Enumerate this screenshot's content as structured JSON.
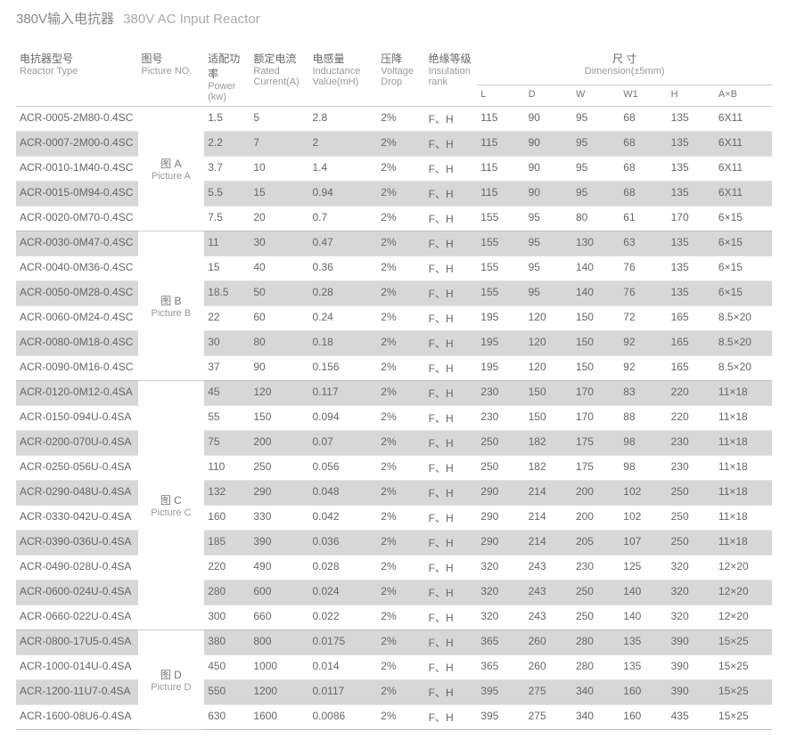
{
  "title_cn": "380V输入电抗器",
  "title_en": "380V AC  Input Reactor",
  "headers": {
    "type_cn": "电抗器型号",
    "type_en": "Reactor Type",
    "pic_cn": "图号",
    "pic_en": "Picture NO.",
    "power_cn": "适配功率",
    "power_en": "Power (kw)",
    "current_cn": "额定电流",
    "current_en": "Rated Current(A)",
    "ind_cn": "电感量",
    "ind_en": "Inductance Value(mH)",
    "drop_cn": "压降",
    "drop_en": "Voltage Drop",
    "ins_cn": "绝缘等级",
    "ins_en": "Insulation rank",
    "dim_cn": "尺 寸",
    "dim_en": "Dimension(±5mm)",
    "L": "L",
    "D": "D",
    "W": "W",
    "W1": "W1",
    "H": "H",
    "AxB": "A×B"
  },
  "groups": [
    {
      "pic_cn": "图  A",
      "pic_en": "Picture A",
      "rows": [
        {
          "type": "ACR-0005-2M80-0.4SC",
          "p": "1.5",
          "c": "5",
          "i": "2.8",
          "d": "2%",
          "ins": "F、H",
          "L": "115",
          "D": "90",
          "W": "95",
          "W1": "68",
          "H": "135",
          "AB": "6X11"
        },
        {
          "type": "ACR-0007-2M00-0.4SC",
          "p": "2.2",
          "c": "7",
          "i": "2",
          "d": "2%",
          "ins": "F、H",
          "L": "115",
          "D": "90",
          "W": "95",
          "W1": "68",
          "H": "135",
          "AB": "6X11"
        },
        {
          "type": "ACR-0010-1M40-0.4SC",
          "p": "3.7",
          "c": "10",
          "i": "1.4",
          "d": "2%",
          "ins": "F、H",
          "L": "115",
          "D": "90",
          "W": "95",
          "W1": "68",
          "H": "135",
          "AB": "6X11"
        },
        {
          "type": "ACR-0015-0M94-0.4SC",
          "p": "5.5",
          "c": "15",
          "i": "0.94",
          "d": "2%",
          "ins": "F、H",
          "L": "115",
          "D": "90",
          "W": "95",
          "W1": "68",
          "H": "135",
          "AB": "6X11"
        },
        {
          "type": "ACR-0020-0M70-0.4SC",
          "p": "7.5",
          "c": "20",
          "i": "0.7",
          "d": "2%",
          "ins": "F、H",
          "L": "155",
          "D": "95",
          "W": "80",
          "W1": "61",
          "H": "170",
          "AB": "6×15"
        }
      ]
    },
    {
      "pic_cn": "图  B",
      "pic_en": "Picture B",
      "rows": [
        {
          "type": "ACR-0030-0M47-0.4SC",
          "p": "11",
          "c": "30",
          "i": "0.47",
          "d": "2%",
          "ins": "F、H",
          "L": "155",
          "D": "95",
          "W": "130",
          "W1": "63",
          "H": "135",
          "AB": "6×15"
        },
        {
          "type": "ACR-0040-0M36-0.4SC",
          "p": "15",
          "c": "40",
          "i": "0.36",
          "d": "2%",
          "ins": "F、H",
          "L": "155",
          "D": "95",
          "W": "140",
          "W1": "76",
          "H": "135",
          "AB": "6×15"
        },
        {
          "type": "ACR-0050-0M28-0.4SC",
          "p": "18.5",
          "c": "50",
          "i": "0.28",
          "d": "2%",
          "ins": "F、H",
          "L": "155",
          "D": "95",
          "W": "140",
          "W1": "76",
          "H": "135",
          "AB": "6×15"
        },
        {
          "type": "ACR-0060-0M24-0.4SC",
          "p": "22",
          "c": "60",
          "i": "0.24",
          "d": "2%",
          "ins": "F、H",
          "L": "195",
          "D": "120",
          "W": "150",
          "W1": "72",
          "H": "165",
          "AB": "8.5×20"
        },
        {
          "type": "ACR-0080-0M18-0.4SC",
          "p": "30",
          "c": "80",
          "i": "0.18",
          "d": "2%",
          "ins": "F、H",
          "L": "195",
          "D": "120",
          "W": "150",
          "W1": "92",
          "H": "165",
          "AB": "8.5×20"
        },
        {
          "type": "ACR-0090-0M16-0.4SC",
          "p": "37",
          "c": "90",
          "i": "0.156",
          "d": "2%",
          "ins": "F、H",
          "L": "195",
          "D": "120",
          "W": "150",
          "W1": "92",
          "H": "165",
          "AB": "8.5×20"
        }
      ]
    },
    {
      "pic_cn": "图  C",
      "pic_en": "Picture C",
      "rows": [
        {
          "type": "ACR-0120-0M12-0.4SA",
          "p": "45",
          "c": "120",
          "i": "0.117",
          "d": "2%",
          "ins": "F、H",
          "L": "230",
          "D": "150",
          "W": "170",
          "W1": "83",
          "H": "220",
          "AB": "11×18"
        },
        {
          "type": "ACR-0150-094U-0.4SA",
          "p": "55",
          "c": "150",
          "i": "0.094",
          "d": "2%",
          "ins": "F、H",
          "L": "230",
          "D": "150",
          "W": "170",
          "W1": "88",
          "H": "220",
          "AB": "11×18"
        },
        {
          "type": "ACR-0200-070U-0.4SA",
          "p": "75",
          "c": "200",
          "i": "0.07",
          "d": "2%",
          "ins": "F、H",
          "L": "250",
          "D": "182",
          "W": "175",
          "W1": "98",
          "H": "230",
          "AB": "11×18"
        },
        {
          "type": "ACR-0250-056U-0.4SA",
          "p": "110",
          "c": "250",
          "i": "0.056",
          "d": "2%",
          "ins": "F、H",
          "L": "250",
          "D": "182",
          "W": "175",
          "W1": "98",
          "H": "230",
          "AB": "11×18"
        },
        {
          "type": "ACR-0290-048U-0.4SA",
          "p": "132",
          "c": "290",
          "i": "0.048",
          "d": "2%",
          "ins": "F、H",
          "L": "290",
          "D": "214",
          "W": "200",
          "W1": "102",
          "H": "250",
          "AB": "11×18"
        },
        {
          "type": "ACR-0330-042U-0.4SA",
          "p": "160",
          "c": "330",
          "i": "0.042",
          "d": "2%",
          "ins": "F、H",
          "L": "290",
          "D": "214",
          "W": "200",
          "W1": "102",
          "H": "250",
          "AB": "11×18"
        },
        {
          "type": "ACR-0390-036U-0.4SA",
          "p": "185",
          "c": "390",
          "i": "0.036",
          "d": "2%",
          "ins": "F、H",
          "L": "290",
          "D": "214",
          "W": "205",
          "W1": "107",
          "H": "250",
          "AB": "11×18"
        },
        {
          "type": "ACR-0490-028U-0.4SA",
          "p": "220",
          "c": "490",
          "i": "0.028",
          "d": "2%",
          "ins": "F、H",
          "L": "320",
          "D": "243",
          "W": "230",
          "W1": "125",
          "H": "320",
          "AB": "12×20"
        },
        {
          "type": "ACR-0600-024U-0.4SA",
          "p": "280",
          "c": "600",
          "i": "0.024",
          "d": "2%",
          "ins": "F、H",
          "L": "320",
          "D": "243",
          "W": "250",
          "W1": "140",
          "H": "320",
          "AB": "12×20"
        },
        {
          "type": "ACR-0660-022U-0.4SA",
          "p": "300",
          "c": "660",
          "i": "0.022",
          "d": "2%",
          "ins": "F、H",
          "L": "320",
          "D": "243",
          "W": "250",
          "W1": "140",
          "H": "320",
          "AB": "12×20"
        }
      ]
    },
    {
      "pic_cn": "图  D",
      "pic_en": "Picture D",
      "rows": [
        {
          "type": "ACR-0800-17U5-0.4SA",
          "p": "380",
          "c": "800",
          "i": "0.0175",
          "d": "2%",
          "ins": "F、H",
          "L": "365",
          "D": "260",
          "W": "280",
          "W1": "135",
          "H": "390",
          "AB": "15×25"
        },
        {
          "type": "ACR-1000-014U-0.4SA",
          "p": "450",
          "c": "1000",
          "i": "0.014",
          "d": "2%",
          "ins": "F、H",
          "L": "365",
          "D": "260",
          "W": "280",
          "W1": "135",
          "H": "390",
          "AB": "15×25"
        },
        {
          "type": "ACR-1200-11U7-0.4SA",
          "p": "550",
          "c": "1200",
          "i": "0.0117",
          "d": "2%",
          "ins": "F、H",
          "L": "395",
          "D": "275",
          "W": "340",
          "W1": "160",
          "H": "390",
          "AB": "15×25"
        },
        {
          "type": "ACR-1600-08U6-0.4SA",
          "p": "630",
          "c": "1600",
          "i": "0.0086",
          "d": "2%",
          "ins": "F、H",
          "L": "395",
          "D": "275",
          "W": "340",
          "W1": "160",
          "H": "435",
          "AB": "15×25"
        }
      ]
    }
  ]
}
